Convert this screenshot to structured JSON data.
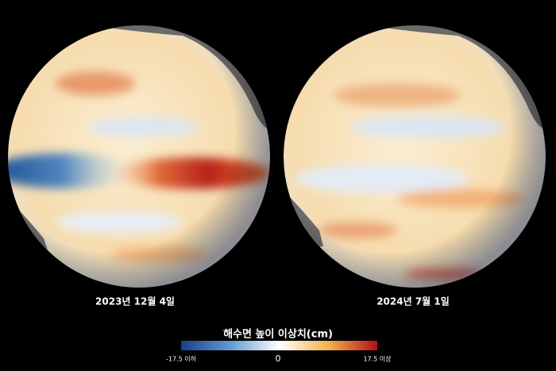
{
  "globes": [
    {
      "date": "2023년 12월 4일"
    },
    {
      "date": "2024년 7월 1일"
    }
  ],
  "legend": {
    "title": "해수면 높이 이상치(cm)",
    "min_label": "-17.5 이하",
    "mid_label": "0",
    "max_label": "17.5 이상"
  }
}
